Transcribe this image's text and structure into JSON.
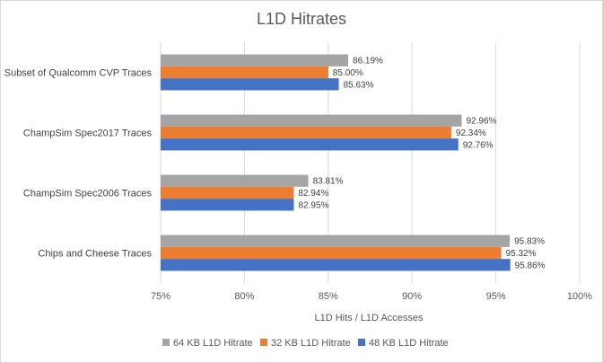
{
  "chart_data": {
    "type": "bar",
    "orientation": "horizontal",
    "title": "L1D Hitrates",
    "xlabel": "L1D Hits / L1D Accesses",
    "ylabel": "",
    "xlim": [
      0.75,
      1.0
    ],
    "xticks": [
      "75%",
      "80%",
      "85%",
      "90%",
      "95%",
      "100%"
    ],
    "grid": true,
    "legend_position": "bottom",
    "categories": [
      "Subset of Qualcomm CVP Traces",
      "ChampSim Spec2017 Traces",
      "ChampSim Spec2006 Traces",
      "Chips and Cheese Traces"
    ],
    "series": [
      {
        "name": "64 KB L1D Hitrate",
        "color": "#a5a5a5",
        "values": [
          0.8619,
          0.9296,
          0.8381,
          0.9583
        ],
        "labels": [
          "86.19%",
          "92.96%",
          "83.81%",
          "95.83%"
        ]
      },
      {
        "name": "32 KB L1D Hitrate",
        "color": "#ed7d31",
        "values": [
          0.85,
          0.9234,
          0.8294,
          0.9532
        ],
        "labels": [
          "85.00%",
          "92.34%",
          "82.94%",
          "95.32%"
        ]
      },
      {
        "name": "48 KB L1D Hitrate",
        "color": "#4472c4",
        "values": [
          0.8563,
          0.9276,
          0.8295,
          0.9586
        ],
        "labels": [
          "85.63%",
          "92.76%",
          "82.95%",
          "95.86%"
        ]
      }
    ]
  }
}
